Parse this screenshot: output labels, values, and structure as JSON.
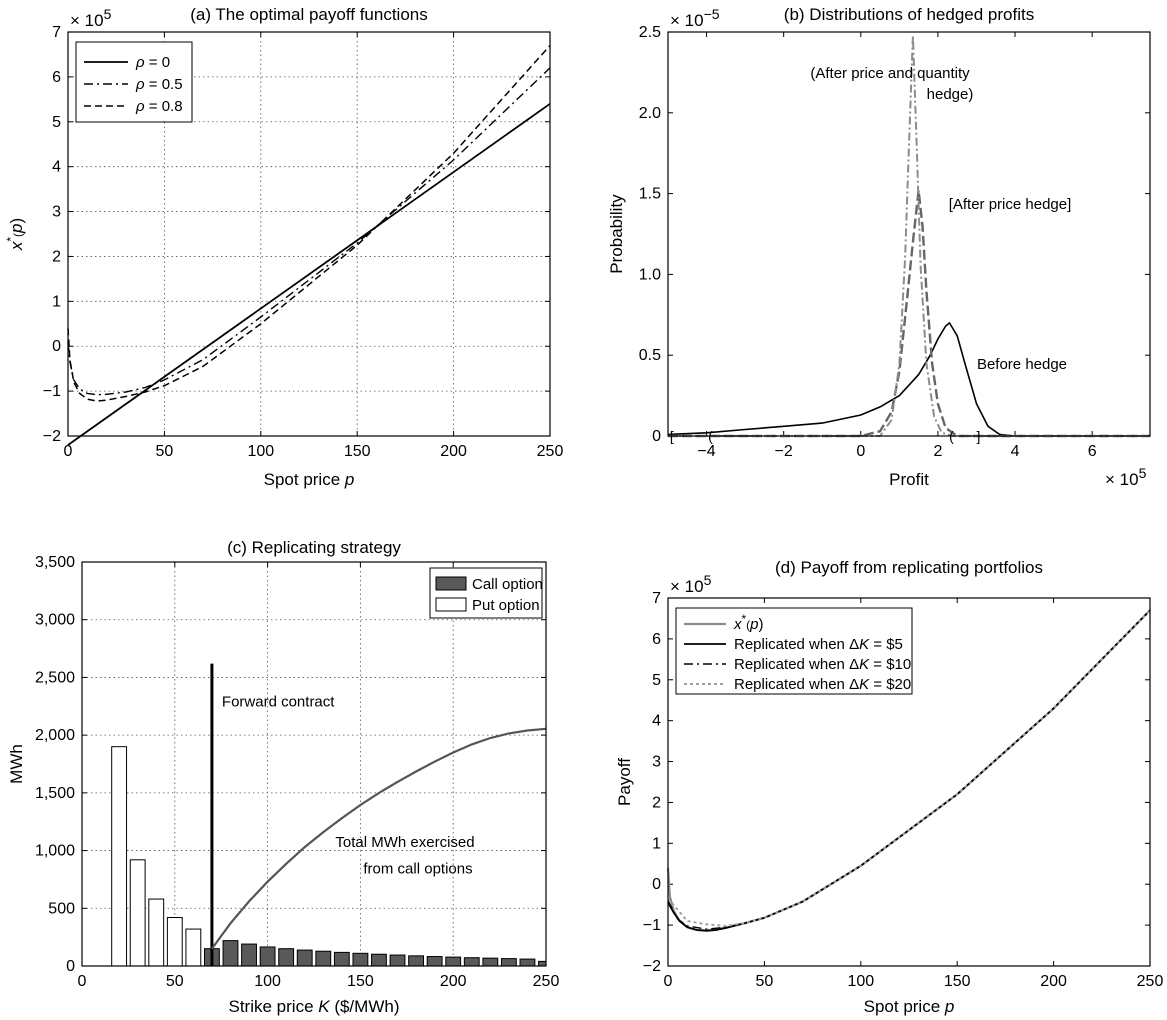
{
  "chart_data": [
    {
      "id": "a",
      "type": "line",
      "title": "(a) The optimal payoff functions",
      "xlabel": "Spot price p",
      "ylabel": "x*(p)",
      "multiplier": "× 10",
      "multiplier_exp": "5",
      "xlim": [
        0,
        250
      ],
      "ylim": [
        -2,
        7
      ],
      "xticks": [
        0,
        50,
        100,
        150,
        200,
        250
      ],
      "yticks": [
        -2,
        -1,
        0,
        1,
        2,
        3,
        4,
        5,
        6,
        7
      ],
      "grid": true,
      "legend_position": "top-left",
      "series": [
        {
          "name": "ρ = 0",
          "style": "solid",
          "x": [
            0,
            250
          ],
          "y": [
            -2.2,
            5.4
          ]
        },
        {
          "name": "ρ = 0.5",
          "style": "dashdot",
          "x": [
            0,
            1,
            3,
            6,
            10,
            15,
            20,
            30,
            40,
            50,
            70,
            100,
            150,
            200,
            250
          ],
          "y": [
            0.1,
            -0.35,
            -0.75,
            -0.95,
            -1.05,
            -1.08,
            -1.07,
            -1.02,
            -0.92,
            -0.75,
            -0.3,
            0.65,
            2.3,
            4.15,
            6.2
          ]
        },
        {
          "name": "ρ = 0.8",
          "style": "dashed",
          "x": [
            0,
            1,
            3,
            6,
            10,
            15,
            20,
            30,
            40,
            50,
            70,
            100,
            150,
            200,
            250
          ],
          "y": [
            0.4,
            -0.3,
            -0.8,
            -1.05,
            -1.18,
            -1.22,
            -1.2,
            -1.12,
            -1.02,
            -0.88,
            -0.45,
            0.5,
            2.25,
            4.3,
            6.7
          ]
        }
      ]
    },
    {
      "id": "b",
      "type": "line",
      "title": "(b) Distributions of hedged profits",
      "xlabel": "Profit",
      "ylabel": "Probability",
      "multiplier_y": "× 10",
      "multiplier_y_exp": "−5",
      "multiplier_x": "× 10",
      "multiplier_x_exp": "5",
      "xlim": [
        -5,
        7.5
      ],
      "ylim": [
        0,
        2.5
      ],
      "xticks": [
        -4,
        -2,
        0,
        2,
        4,
        6
      ],
      "xtick_labels": [
        "−4",
        "−2",
        "0",
        "2",
        "4",
        "6"
      ],
      "yticks": [
        0,
        0.5,
        1.0,
        1.5,
        2.0,
        2.5
      ],
      "ytick_labels": [
        "0",
        "0.5",
        "1.0",
        "1.5",
        "2.0",
        "2.5"
      ],
      "grid": false,
      "annotations": [
        "(After price and quantity",
        "hedge)",
        "[After price hedge]",
        "Before hedge",
        "[",
        "(",
        "]",
        "("
      ],
      "series": [
        {
          "name": "Before hedge",
          "style": "solid",
          "x": [
            -5,
            -4,
            -3,
            -2,
            -1,
            0,
            0.5,
            1,
            1.5,
            1.8,
            2.0,
            2.2,
            2.3,
            2.5,
            2.7,
            3.0,
            3.3,
            3.6,
            4,
            7.5
          ],
          "y": [
            0.01,
            0.02,
            0.04,
            0.06,
            0.08,
            0.13,
            0.18,
            0.25,
            0.38,
            0.5,
            0.6,
            0.68,
            0.7,
            0.62,
            0.45,
            0.2,
            0.06,
            0.01,
            0,
            0
          ]
        },
        {
          "name": "[After price hedge]",
          "style": "longdash",
          "x": [
            -5,
            0,
            0.5,
            0.8,
            1.0,
            1.2,
            1.35,
            1.5,
            1.6,
            1.7,
            1.85,
            2.0,
            2.2,
            2.5,
            7.5
          ],
          "y": [
            0,
            0,
            0.03,
            0.15,
            0.4,
            0.85,
            1.2,
            1.52,
            1.3,
            0.9,
            0.45,
            0.2,
            0.05,
            0,
            0
          ]
        },
        {
          "name": "(After price and quantity hedge)",
          "style": "dashdot",
          "x": [
            -5,
            0.5,
            0.8,
            1.0,
            1.15,
            1.25,
            1.35,
            1.45,
            1.55,
            1.7,
            1.9,
            2.1,
            2.4,
            7.5
          ],
          "y": [
            0,
            0,
            0.1,
            0.45,
            1.1,
            1.8,
            2.48,
            1.8,
            1.05,
            0.45,
            0.12,
            0.02,
            0,
            0
          ]
        }
      ]
    },
    {
      "id": "c",
      "type": "bar",
      "title": "(c) Replicating strategy",
      "xlabel": "Strike price K ($/MWh)",
      "ylabel": "MWh",
      "xlim": [
        0,
        250
      ],
      "ylim": [
        0,
        3500
      ],
      "xticks": [
        0,
        50,
        100,
        150,
        200,
        250
      ],
      "yticks": [
        0,
        500,
        1000,
        1500,
        2000,
        2500,
        3000,
        3500
      ],
      "ytick_labels": [
        "0",
        "500",
        "1,000",
        "1,500",
        "2,000",
        "2,500",
        "3,000",
        "3,500"
      ],
      "grid": true,
      "legend_position": "top-right",
      "bar_width": 8,
      "series": [
        {
          "name": "Call option",
          "color": "#595959",
          "x": [
            70,
            80,
            90,
            100,
            110,
            120,
            130,
            140,
            150,
            160,
            170,
            180,
            190,
            200,
            210,
            220,
            230,
            240,
            250
          ],
          "values": [
            150,
            220,
            190,
            165,
            150,
            138,
            128,
            118,
            110,
            102,
            95,
            88,
            82,
            77,
            72,
            68,
            64,
            60,
            40
          ]
        },
        {
          "name": "Put option",
          "color": "#ffffff",
          "x": [
            20,
            30,
            40,
            50,
            60
          ],
          "values": [
            1900,
            920,
            580,
            420,
            320
          ]
        }
      ],
      "forward_contract": {
        "label": "Forward contract",
        "x": 70,
        "value": 2620
      },
      "cumulative_curve": {
        "label_line1": "Total MWh exercised",
        "label_line2": "from call options",
        "x": [
          70,
          75,
          80,
          90,
          100,
          110,
          120,
          130,
          140,
          150,
          160,
          170,
          180,
          190,
          200,
          210,
          220,
          230,
          240,
          250
        ],
        "y": [
          150,
          260,
          370,
          560,
          730,
          885,
          1030,
          1160,
          1280,
          1395,
          1500,
          1595,
          1685,
          1770,
          1850,
          1920,
          1975,
          2015,
          2040,
          2055
        ]
      }
    },
    {
      "id": "d",
      "type": "line",
      "title": "(d) Payoff from replicating portfolios",
      "xlabel": "Spot price p",
      "ylabel": "Payoff",
      "multiplier": "× 10",
      "multiplier_exp": "5",
      "xlim": [
        0,
        250
      ],
      "ylim": [
        -2,
        7
      ],
      "xticks": [
        0,
        50,
        100,
        150,
        200,
        250
      ],
      "yticks": [
        -2,
        -1,
        0,
        1,
        2,
        3,
        4,
        5,
        6,
        7
      ],
      "grid": false,
      "legend_position": "top-left",
      "series": [
        {
          "name": "x*(p)",
          "style": "solid-gray",
          "x": [
            0,
            1,
            3,
            6,
            10,
            15,
            20,
            30,
            40,
            50,
            70,
            100,
            150,
            200,
            250
          ],
          "y": [
            0.4,
            -0.3,
            -0.65,
            -0.9,
            -1.05,
            -1.12,
            -1.13,
            -1.06,
            -0.95,
            -0.82,
            -0.42,
            0.45,
            2.2,
            4.3,
            6.7
          ]
        },
        {
          "name": "Replicated when ΔK = $5",
          "style": "solid",
          "x": [
            0,
            3,
            6,
            10,
            15,
            20,
            25,
            30,
            40,
            50,
            70,
            100,
            150,
            200,
            250
          ],
          "y": [
            -0.45,
            -0.7,
            -0.9,
            -1.05,
            -1.12,
            -1.14,
            -1.12,
            -1.07,
            -0.95,
            -0.82,
            -0.42,
            0.45,
            2.2,
            4.3,
            6.7
          ]
        },
        {
          "name": "Replicated when ΔK = $10",
          "style": "dashdot",
          "x": [
            0,
            5,
            10,
            20,
            30,
            40,
            50,
            70,
            100,
            150,
            200,
            250
          ],
          "y": [
            -0.4,
            -0.85,
            -1.02,
            -1.1,
            -1.05,
            -0.95,
            -0.82,
            -0.42,
            0.45,
            2.2,
            4.3,
            6.7
          ]
        },
        {
          "name": "Replicated when ΔK = $20",
          "style": "dotted-gray",
          "x": [
            0,
            10,
            20,
            30,
            40,
            50,
            70,
            100,
            150,
            200,
            250
          ],
          "y": [
            -0.35,
            -0.9,
            -0.98,
            -1.02,
            -0.95,
            -0.82,
            -0.42,
            0.45,
            2.2,
            4.3,
            6.7
          ]
        }
      ]
    }
  ]
}
